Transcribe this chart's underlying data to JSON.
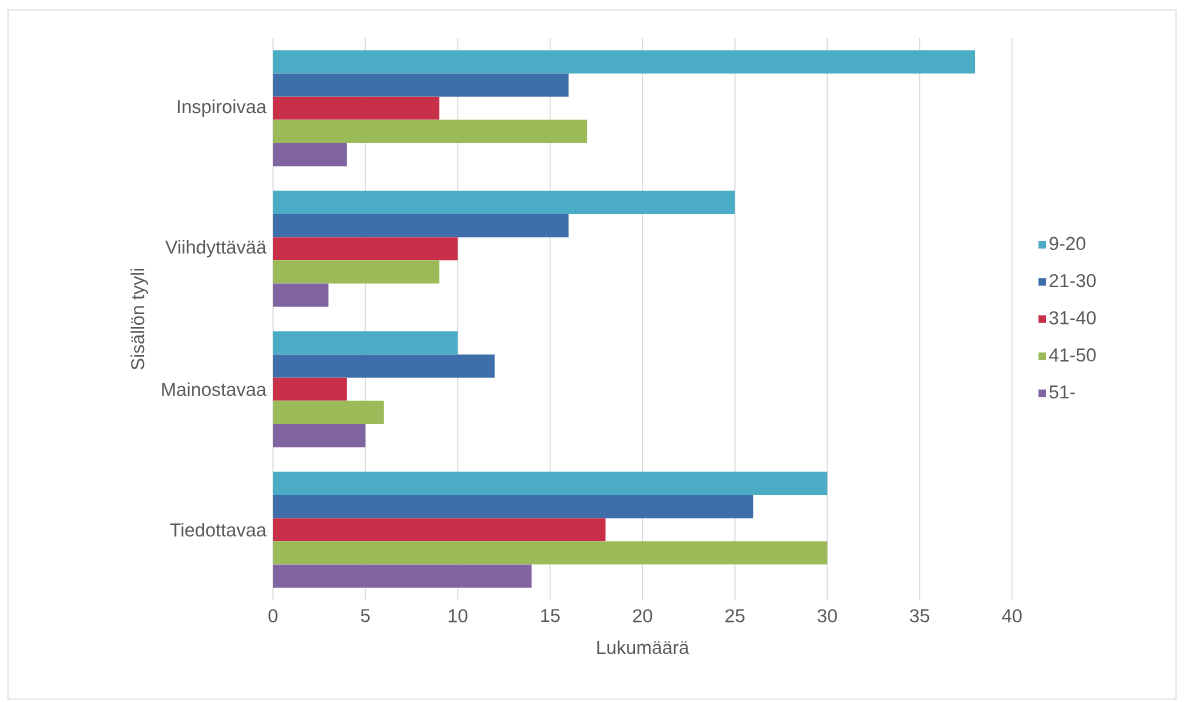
{
  "chart_data": {
    "type": "bar",
    "orientation": "horizontal",
    "xlabel": "Lukumäärä",
    "ylabel": "Sisällön tyyli",
    "categories": [
      "Inspiroivaa",
      "Viihdyttävää",
      "Mainostavaa",
      "Tiedottavaa"
    ],
    "series": [
      {
        "name": "9-20",
        "color": "#4bacc6",
        "values": [
          38,
          25,
          10,
          30
        ]
      },
      {
        "name": "21-30",
        "color": "#3f6faa",
        "values": [
          16,
          16,
          12,
          26
        ]
      },
      {
        "name": "31-40",
        "color": "#c8304a",
        "values": [
          9,
          10,
          4,
          18
        ]
      },
      {
        "name": "41-50",
        "color": "#9bbb59",
        "values": [
          17,
          9,
          6,
          30
        ]
      },
      {
        "name": "51-",
        "color": "#8064a2",
        "values": [
          4,
          3,
          5,
          14
        ]
      }
    ],
    "xlim": [
      0,
      40
    ],
    "xticks": [
      0,
      5,
      10,
      15,
      20,
      25,
      30,
      35,
      40
    ],
    "grid": "x",
    "legend": "right"
  }
}
